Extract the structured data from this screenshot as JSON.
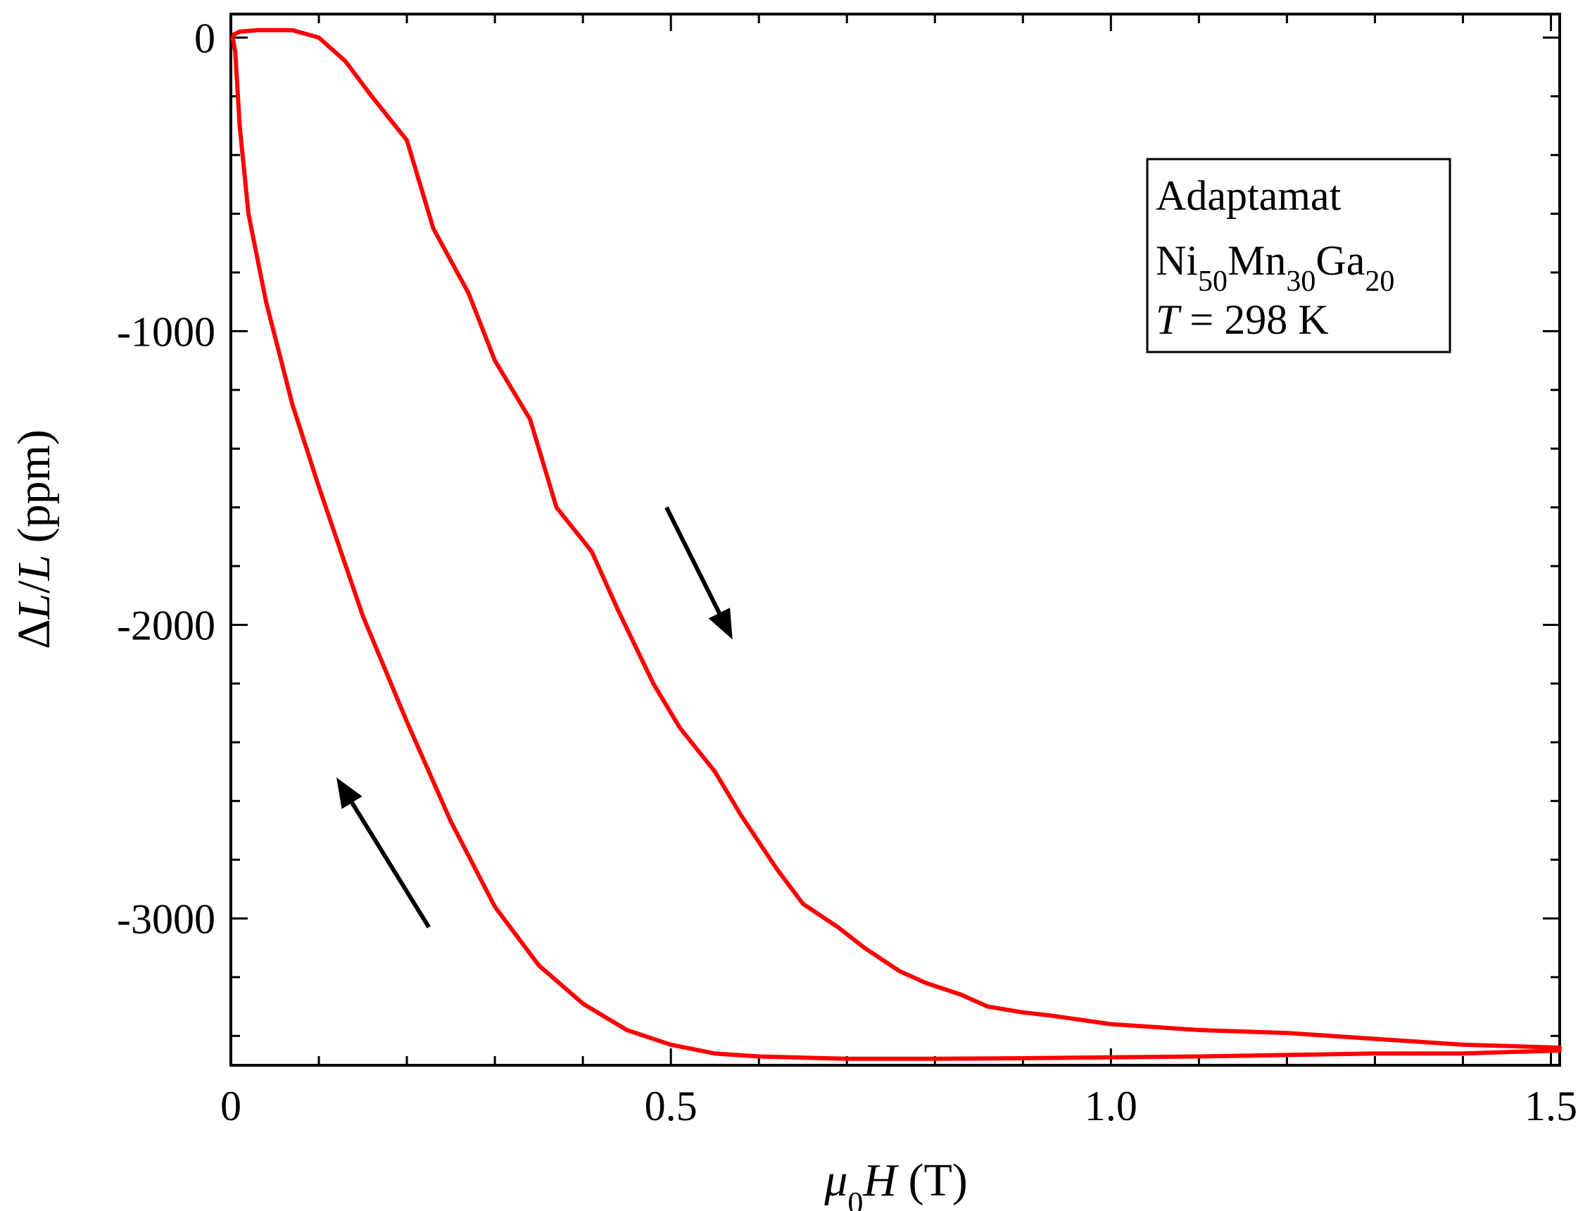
{
  "chart_data": {
    "type": "line",
    "title": "",
    "xlabel": {
      "symbol": "μ",
      "sub": "0",
      "var": "H",
      "unit": " (T)"
    },
    "ylabel": {
      "delta": "Δ",
      "var1": "L",
      "slash": "/",
      "var2": "L",
      "unit": " (ppm)"
    },
    "xlim": [
      0,
      1.51
    ],
    "ylim": [
      -3500,
      80
    ],
    "x_ticks": [
      0,
      0.5,
      1.0,
      1.5
    ],
    "x_tick_labels": [
      "0",
      "0.5",
      "1.0",
      "1.5"
    ],
    "y_ticks": [
      0,
      -1000,
      -2000,
      -3000
    ],
    "y_tick_labels": [
      "0",
      "-1000",
      "-2000",
      "-3000"
    ],
    "x_minor_step": 0.1,
    "y_minor_step": 200,
    "grid": false,
    "legend_box": {
      "line1": "Adaptamat",
      "formula": [
        {
          "t": "Ni",
          "sub": "50"
        },
        {
          "t": "Mn",
          "sub": "30"
        },
        {
          "t": "Ga",
          "sub": "20"
        }
      ],
      "temp_var": "T",
      "temp_rest": " = 298 K",
      "placement": "top-right"
    },
    "arrows": [
      {
        "name": "increasing-field-arrow",
        "from": [
          0.495,
          -1600
        ],
        "to": [
          0.57,
          -2050
        ]
      },
      {
        "name": "decreasing-field-arrow",
        "from": [
          0.225,
          -3030
        ],
        "to": [
          0.12,
          -2520
        ]
      }
    ],
    "series": [
      {
        "name": "increasing field",
        "color": "#ff0000",
        "x": [
          0.003,
          0.01,
          0.03,
          0.07,
          0.1,
          0.13,
          0.16,
          0.2,
          0.23,
          0.27,
          0.3,
          0.34,
          0.37,
          0.41,
          0.44,
          0.48,
          0.51,
          0.55,
          0.58,
          0.62,
          0.65,
          0.69,
          0.72,
          0.76,
          0.79,
          0.83,
          0.86,
          0.9,
          0.93,
          1.0,
          1.1,
          1.2,
          1.3,
          1.4,
          1.51
        ],
        "y": [
          10,
          20,
          25,
          25,
          0,
          -80,
          -200,
          -350,
          -650,
          -870,
          -1100,
          -1300,
          -1600,
          -1750,
          -1950,
          -2200,
          -2350,
          -2500,
          -2650,
          -2830,
          -2950,
          -3030,
          -3100,
          -3180,
          -3220,
          -3260,
          -3300,
          -3320,
          -3330,
          -3360,
          -3380,
          -3390,
          -3410,
          -3430,
          -3440
        ]
      },
      {
        "name": "decreasing field",
        "color": "#ff0000",
        "x": [
          1.51,
          1.4,
          1.3,
          1.2,
          1.1,
          1.0,
          0.9,
          0.8,
          0.7,
          0.6,
          0.55,
          0.5,
          0.45,
          0.4,
          0.35,
          0.3,
          0.25,
          0.2,
          0.15,
          0.1,
          0.07,
          0.04,
          0.02,
          0.01,
          0.005,
          0.002
        ],
        "y": [
          -3450,
          -3460,
          -3460,
          -3465,
          -3470,
          -3473,
          -3476,
          -3478,
          -3478,
          -3470,
          -3460,
          -3430,
          -3380,
          -3290,
          -3160,
          -2960,
          -2670,
          -2330,
          -1970,
          -1530,
          -1250,
          -900,
          -600,
          -300,
          -50,
          0
        ]
      }
    ]
  }
}
